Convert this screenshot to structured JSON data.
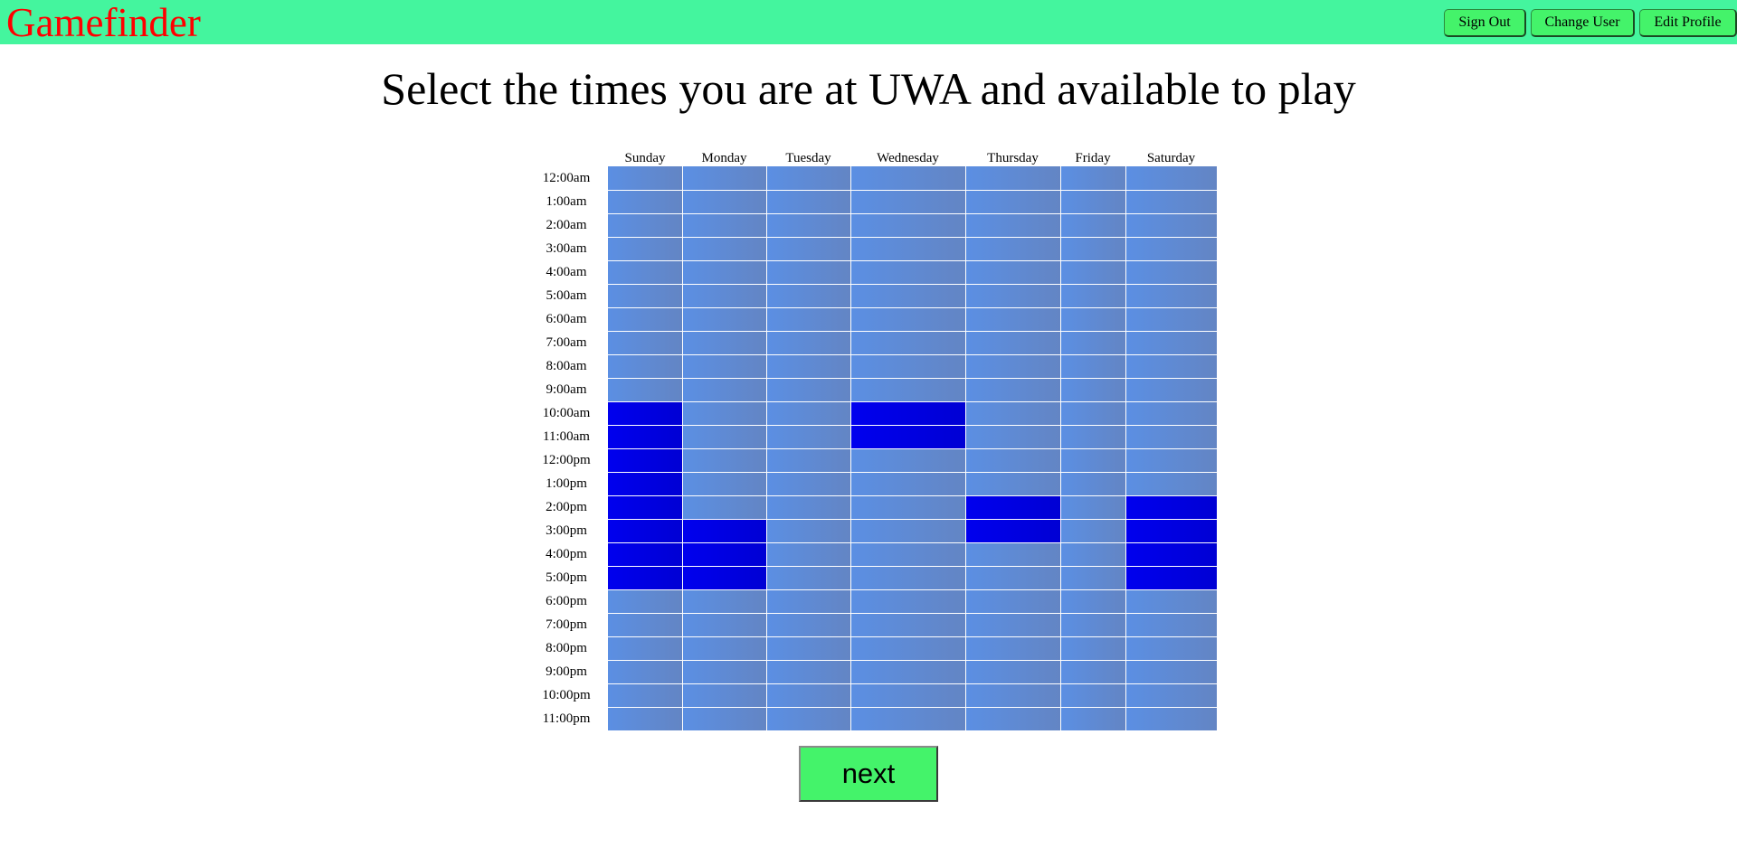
{
  "header": {
    "logo": "Gamefinder",
    "sign_out_label": "Sign Out",
    "change_user_label": "Change User",
    "edit_profile_label": "Edit Profile"
  },
  "main": {
    "heading": "Select the times you are at UWA and available to play",
    "next_label": "next"
  },
  "schedule": {
    "days": [
      "Sunday",
      "Monday",
      "Tuesday",
      "Wednesday",
      "Thursday",
      "Friday",
      "Saturday"
    ],
    "times": [
      "12:00am",
      "1:00am",
      "2:00am",
      "3:00am",
      "4:00am",
      "5:00am",
      "6:00am",
      "7:00am",
      "8:00am",
      "9:00am",
      "10:00am",
      "11:00am",
      "12:00pm",
      "1:00pm",
      "2:00pm",
      "3:00pm",
      "4:00pm",
      "5:00pm",
      "6:00pm",
      "7:00pm",
      "8:00pm",
      "9:00pm",
      "10:00pm",
      "11:00pm"
    ],
    "selected": {
      "Sunday": [
        "10:00am",
        "11:00am",
        "12:00pm",
        "1:00pm",
        "2:00pm",
        "3:00pm",
        "4:00pm",
        "5:00pm"
      ],
      "Monday": [
        "3:00pm",
        "4:00pm",
        "5:00pm"
      ],
      "Tuesday": [],
      "Wednesday": [
        "10:00am",
        "11:00am"
      ],
      "Thursday": [
        "2:00pm",
        "3:00pm"
      ],
      "Friday": [],
      "Saturday": [
        "2:00pm",
        "3:00pm",
        "4:00pm",
        "5:00pm"
      ]
    },
    "colors": {
      "available": "#0000ee",
      "unavailable": "#5b8fe3",
      "cell_border": "#ffffff"
    }
  }
}
